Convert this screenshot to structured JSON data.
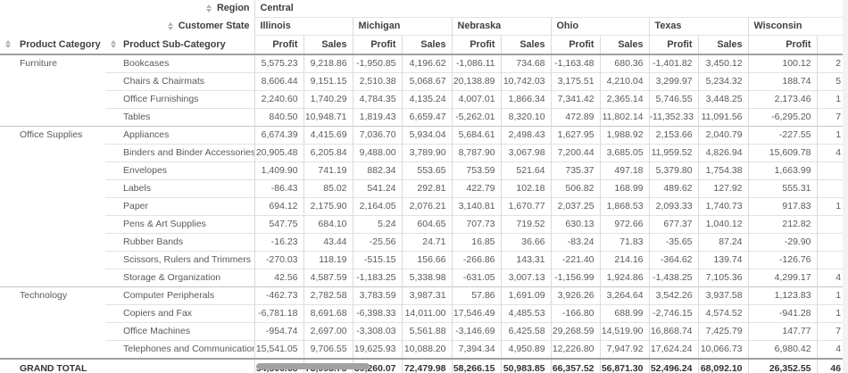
{
  "header": {
    "region_label": "Region",
    "region_value": "Central",
    "customer_state_label": "Customer State",
    "product_category_label": "Product Category",
    "product_subcategory_label": "Product Sub-Category",
    "states": [
      "Illinois",
      "Michigan",
      "Nebraska",
      "Ohio",
      "Texas",
      "Wisconsin"
    ],
    "metric_profit": "Profit",
    "metric_sales": "Sales",
    "grand_total_label": "GRAND TOTAL"
  },
  "icons": {
    "sort": "sort-up-down-arrows"
  },
  "colors": {
    "border_light": "#dadada",
    "border_heavy": "#9f9f9f",
    "text": "#5a5a5a",
    "header_text": "#3f3f3f",
    "scrollbar_thumb": "#a2a2a2"
  },
  "groups": [
    {
      "category": "Furniture",
      "rows": [
        {
          "subcategory": "Bookcases",
          "values": [
            "5,575.23",
            "9,218.86",
            "-1,950.85",
            "4,196.62",
            "-1,086.11",
            "734.68",
            "-1,163.48",
            "680.36",
            "-1,401.82",
            "3,450.12",
            "100.12"
          ],
          "cut": "2"
        },
        {
          "subcategory": "Chairs & Chairmats",
          "values": [
            "8,606.44",
            "9,151.15",
            "2,510.38",
            "5,068.67",
            "20,138.89",
            "10,742.03",
            "3,175.51",
            "4,210.04",
            "3,299.97",
            "5,234.32",
            "188.74"
          ],
          "cut": "5"
        },
        {
          "subcategory": "Office Furnishings",
          "values": [
            "2,240.60",
            "1,740.29",
            "4,784.35",
            "4,135.24",
            "4,007.01",
            "1,866.34",
            "7,341.42",
            "2,365.14",
            "5,746.55",
            "3,448.25",
            "2,173.46"
          ],
          "cut": "1"
        },
        {
          "subcategory": "Tables",
          "values": [
            "840.50",
            "10,948.71",
            "1,819.43",
            "6,659.47",
            "-5,262.01",
            "8,320.10",
            "472.89",
            "11,802.14",
            "-11,352.33",
            "11,091.56",
            "-6,295.20"
          ],
          "cut": "7"
        }
      ]
    },
    {
      "category": "Office Supplies",
      "rows": [
        {
          "subcategory": "Appliances",
          "values": [
            "6,674.39",
            "4,415.69",
            "7,036.70",
            "5,934.04",
            "5,684.61",
            "2,498.43",
            "1,627.95",
            "1,988.92",
            "2,153.66",
            "2,040.79",
            "-227.55"
          ],
          "cut": "1"
        },
        {
          "subcategory": "Binders and Binder Accessories",
          "values": [
            "20,905.48",
            "6,205.84",
            "9,488.00",
            "3,789.90",
            "8,787.90",
            "3,067.98",
            "7,200.44",
            "3,685.05",
            "11,959.52",
            "4,826.94",
            "15,609.78"
          ],
          "cut": "4"
        },
        {
          "subcategory": "Envelopes",
          "values": [
            "1,409.90",
            "741.19",
            "882.34",
            "553.65",
            "753.59",
            "521.64",
            "735.37",
            "497.18",
            "5,379.80",
            "1,754.38",
            "1,663.99"
          ],
          "cut": ""
        },
        {
          "subcategory": "Labels",
          "values": [
            "-86.43",
            "85.02",
            "541.24",
            "292.81",
            "422.79",
            "102.18",
            "506.82",
            "168.99",
            "489.62",
            "127.92",
            "555.31"
          ],
          "cut": ""
        },
        {
          "subcategory": "Paper",
          "values": [
            "694.12",
            "2,175.90",
            "2,164.05",
            "2,076.21",
            "3,140.81",
            "1,670.77",
            "2,037.25",
            "1,868.53",
            "2,093.33",
            "1,740.73",
            "917.83"
          ],
          "cut": "1"
        },
        {
          "subcategory": "Pens & Art Supplies",
          "values": [
            "547.75",
            "684.10",
            "5.24",
            "604.65",
            "707.73",
            "719.52",
            "630.13",
            "972.66",
            "677.37",
            "1,040.12",
            "212.82"
          ],
          "cut": ""
        },
        {
          "subcategory": "Rubber Bands",
          "values": [
            "-16.23",
            "43.44",
            "-25.56",
            "24.71",
            "16.85",
            "36.66",
            "-83.24",
            "71.83",
            "-35.65",
            "87.24",
            "-29.90"
          ],
          "cut": ""
        },
        {
          "subcategory": "Scissors, Rulers and Trimmers",
          "values": [
            "-270.03",
            "118.19",
            "-515.15",
            "156.66",
            "-266.86",
            "143.31",
            "-221.40",
            "214.16",
            "-364.62",
            "139.74",
            "-126.76"
          ],
          "cut": ""
        },
        {
          "subcategory": "Storage & Organization",
          "values": [
            "42.56",
            "4,587.59",
            "-1,183.25",
            "5,338.98",
            "-631.05",
            "3,007.13",
            "-1,156.99",
            "1,924.86",
            "-1,438.25",
            "7,105.36",
            "4,299.17"
          ],
          "cut": "4"
        }
      ]
    },
    {
      "category": "Technology",
      "rows": [
        {
          "subcategory": "Computer Peripherals",
          "values": [
            "-462.73",
            "2,782.58",
            "3,783.59",
            "3,987.31",
            "57.86",
            "1,691.09",
            "3,926.26",
            "3,264.64",
            "3,542.26",
            "3,937.58",
            "1,123.83"
          ],
          "cut": "1"
        },
        {
          "subcategory": "Copiers and Fax",
          "values": [
            "-6,781.18",
            "8,691.68",
            "-6,398.33",
            "14,011.00",
            "17,546.49",
            "4,485.53",
            "-166.80",
            "688.99",
            "-2,746.15",
            "4,574.52",
            "-941.28"
          ],
          "cut": "1"
        },
        {
          "subcategory": "Office Machines",
          "values": [
            "-954.74",
            "2,697.00",
            "-3,308.03",
            "5,561.88",
            "-3,146.69",
            "6,425.58",
            "29,268.59",
            "14,519.90",
            "16,868.74",
            "7,425.79",
            "147.77"
          ],
          "cut": "7"
        },
        {
          "subcategory": "Telephones and Communication",
          "values": [
            "15,541.05",
            "9,706.55",
            "19,625.93",
            "10,088.20",
            "7,394.34",
            "4,950.89",
            "12,226.80",
            "7,947.92",
            "17,624.24",
            "10,066.73",
            "6,980.42"
          ],
          "cut": "4"
        }
      ]
    }
  ],
  "grand_total": {
    "values": [
      "54,506.68",
      "73,993.75",
      "39,260.07",
      "72,479.98",
      "58,266.15",
      "50,983.85",
      "66,357.52",
      "56,871.30",
      "52,496.24",
      "68,092.10",
      "26,352.55"
    ],
    "cut": "46"
  }
}
